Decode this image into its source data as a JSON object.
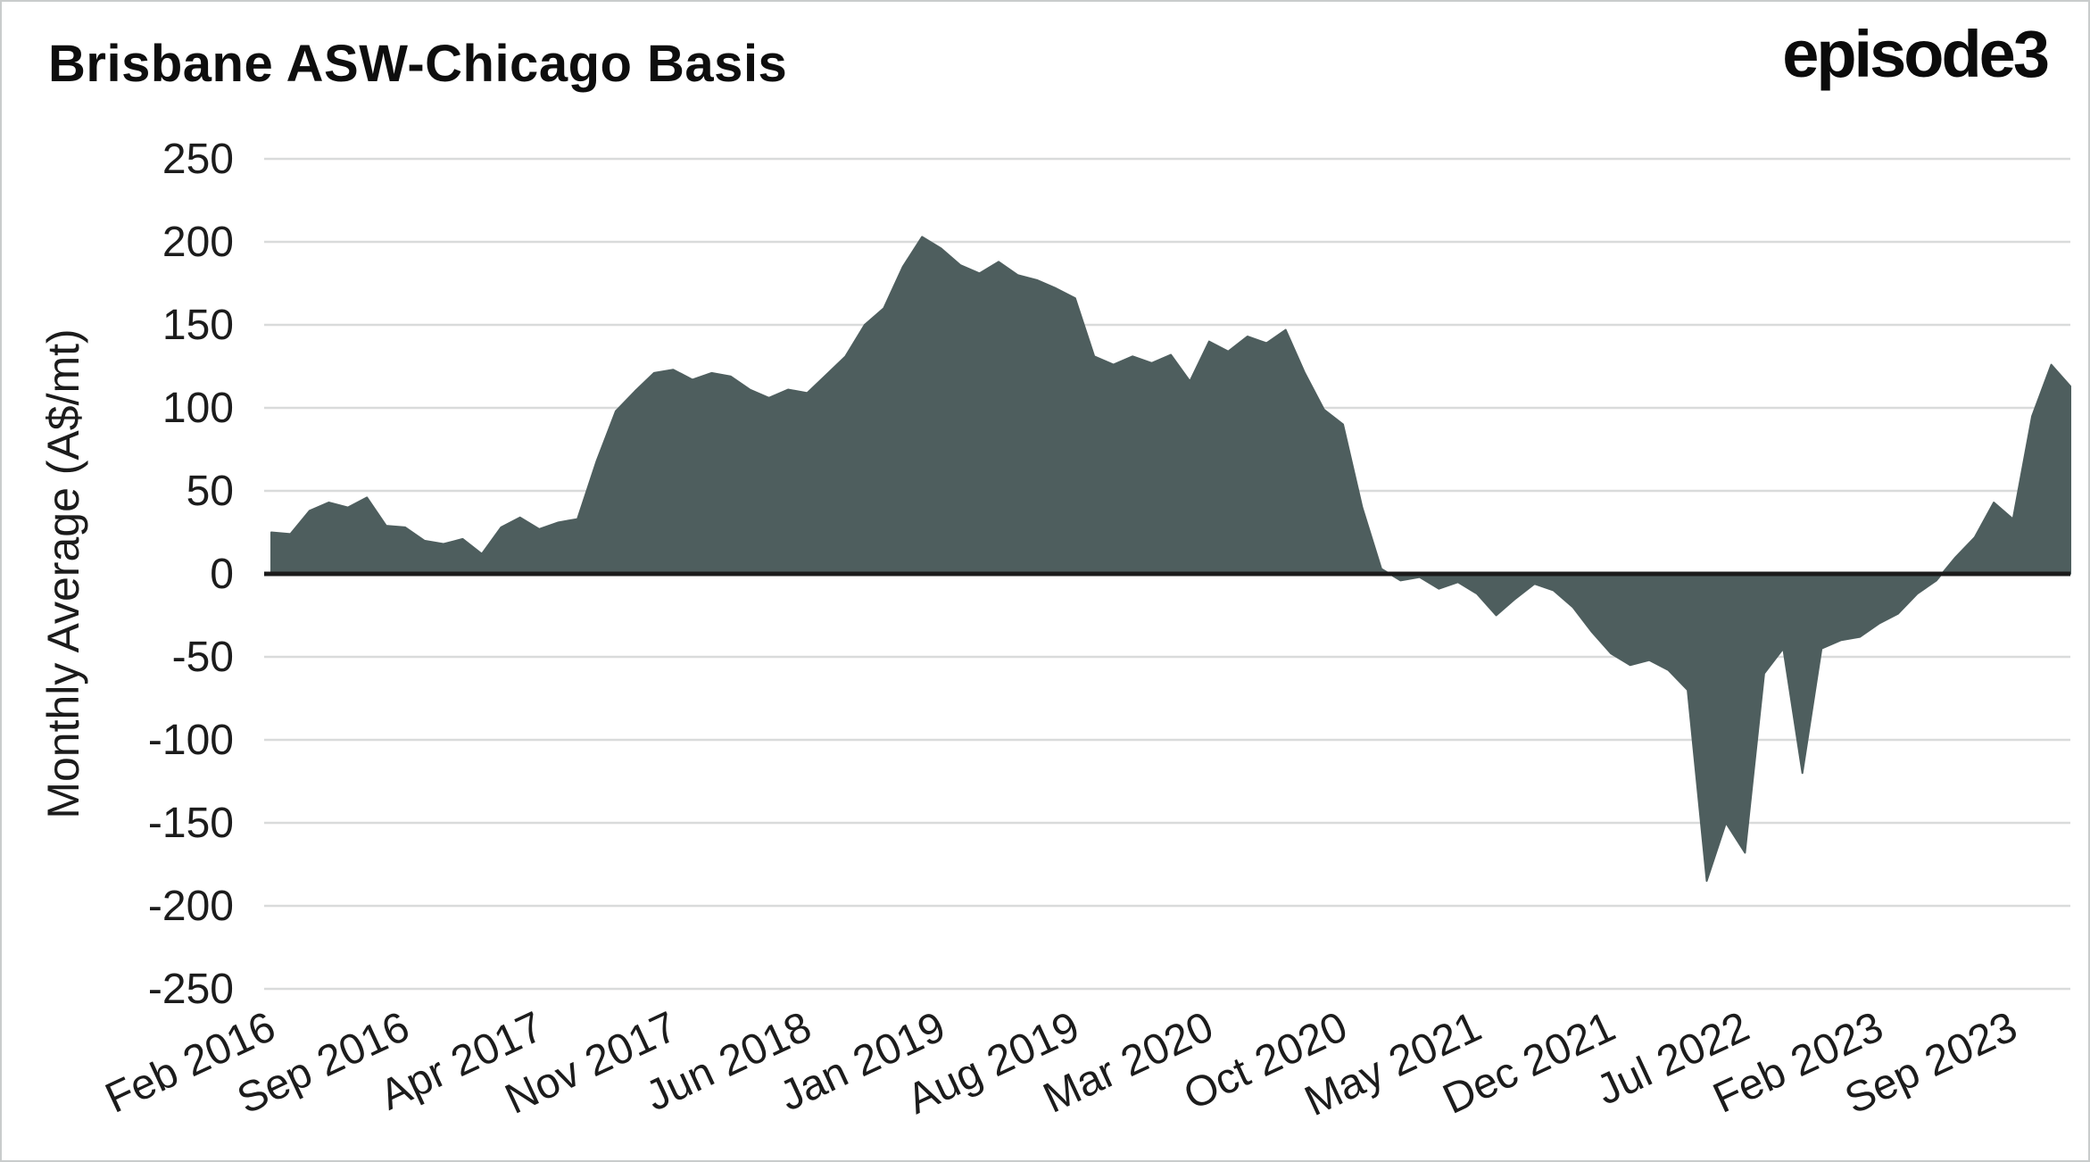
{
  "brand": {
    "logo_text": "episode3"
  },
  "chart_data": {
    "type": "area",
    "title": "Brisbane ASW-Chicago Basis",
    "ylabel": "Monthly Average (A$/mt)",
    "xlabel": "",
    "ylim": [
      -250,
      250
    ],
    "yticks": [
      250,
      200,
      150,
      100,
      50,
      0,
      -50,
      -100,
      -150,
      -200,
      -250
    ],
    "baseline": 0,
    "grid": "horizontal",
    "legend": "none",
    "fill_color": "#4e5e5e",
    "grid_color": "#d9dbdb",
    "zero_line_color": "#1b1b1b",
    "tick_text_color": "#1c1c1c",
    "xtick_labels": [
      "Feb 2016",
      "Sep 2016",
      "Apr 2017",
      "Nov 2017",
      "Jun 2018",
      "Jan 2019",
      "Aug 2019",
      "Mar 2020",
      "Oct 2020",
      "May 2021",
      "Dec 2021",
      "Jul 2022",
      "Feb 2023",
      "Sep 2023"
    ],
    "xtick_indices": [
      0,
      7,
      14,
      21,
      28,
      35,
      42,
      49,
      56,
      63,
      70,
      77,
      84,
      91
    ],
    "months": [
      "2016-02",
      "2016-03",
      "2016-04",
      "2016-05",
      "2016-06",
      "2016-07",
      "2016-08",
      "2016-09",
      "2016-10",
      "2016-11",
      "2016-12",
      "2017-01",
      "2017-02",
      "2017-03",
      "2017-04",
      "2017-05",
      "2017-06",
      "2017-07",
      "2017-08",
      "2017-09",
      "2017-10",
      "2017-11",
      "2017-12",
      "2018-01",
      "2018-02",
      "2018-03",
      "2018-04",
      "2018-05",
      "2018-06",
      "2018-07",
      "2018-08",
      "2018-09",
      "2018-10",
      "2018-11",
      "2018-12",
      "2019-01",
      "2019-02",
      "2019-03",
      "2019-04",
      "2019-05",
      "2019-06",
      "2019-07",
      "2019-08",
      "2019-09",
      "2019-10",
      "2019-11",
      "2019-12",
      "2020-01",
      "2020-02",
      "2020-03",
      "2020-04",
      "2020-05",
      "2020-06",
      "2020-07",
      "2020-08",
      "2020-09",
      "2020-10",
      "2020-11",
      "2020-12",
      "2021-01",
      "2021-02",
      "2021-03",
      "2021-04",
      "2021-05",
      "2021-06",
      "2021-07",
      "2021-08",
      "2021-09",
      "2021-10",
      "2021-11",
      "2021-12",
      "2022-01",
      "2022-02",
      "2022-03",
      "2022-04",
      "2022-05",
      "2022-06",
      "2022-07",
      "2022-08",
      "2022-09",
      "2022-10",
      "2022-11",
      "2022-12",
      "2023-01",
      "2023-02",
      "2023-03",
      "2023-04",
      "2023-05",
      "2023-06",
      "2023-07",
      "2023-08",
      "2023-09",
      "2023-10",
      "2023-11",
      "2023-12"
    ],
    "values": [
      25,
      24,
      38,
      43,
      40,
      46,
      29,
      28,
      20,
      18,
      21,
      12,
      28,
      34,
      27,
      31,
      33,
      68,
      98,
      110,
      121,
      123,
      117,
      121,
      119,
      111,
      106,
      111,
      109,
      120,
      131,
      150,
      160,
      185,
      203,
      196,
      186,
      181,
      188,
      180,
      177,
      172,
      166,
      131,
      126,
      131,
      127,
      132,
      116,
      140,
      134,
      143,
      139,
      147,
      121,
      99,
      90,
      40,
      3,
      -4,
      -2,
      -9,
      -5,
      -12,
      -25,
      -15,
      -6,
      -10,
      -20,
      -35,
      -48,
      -55,
      -52,
      -58,
      -70,
      -185,
      -150,
      -168,
      -60,
      -45,
      -120,
      -45,
      -40,
      -38,
      -30,
      -24,
      -12,
      -4,
      10,
      22,
      43,
      33,
      95,
      126,
      113
    ]
  }
}
